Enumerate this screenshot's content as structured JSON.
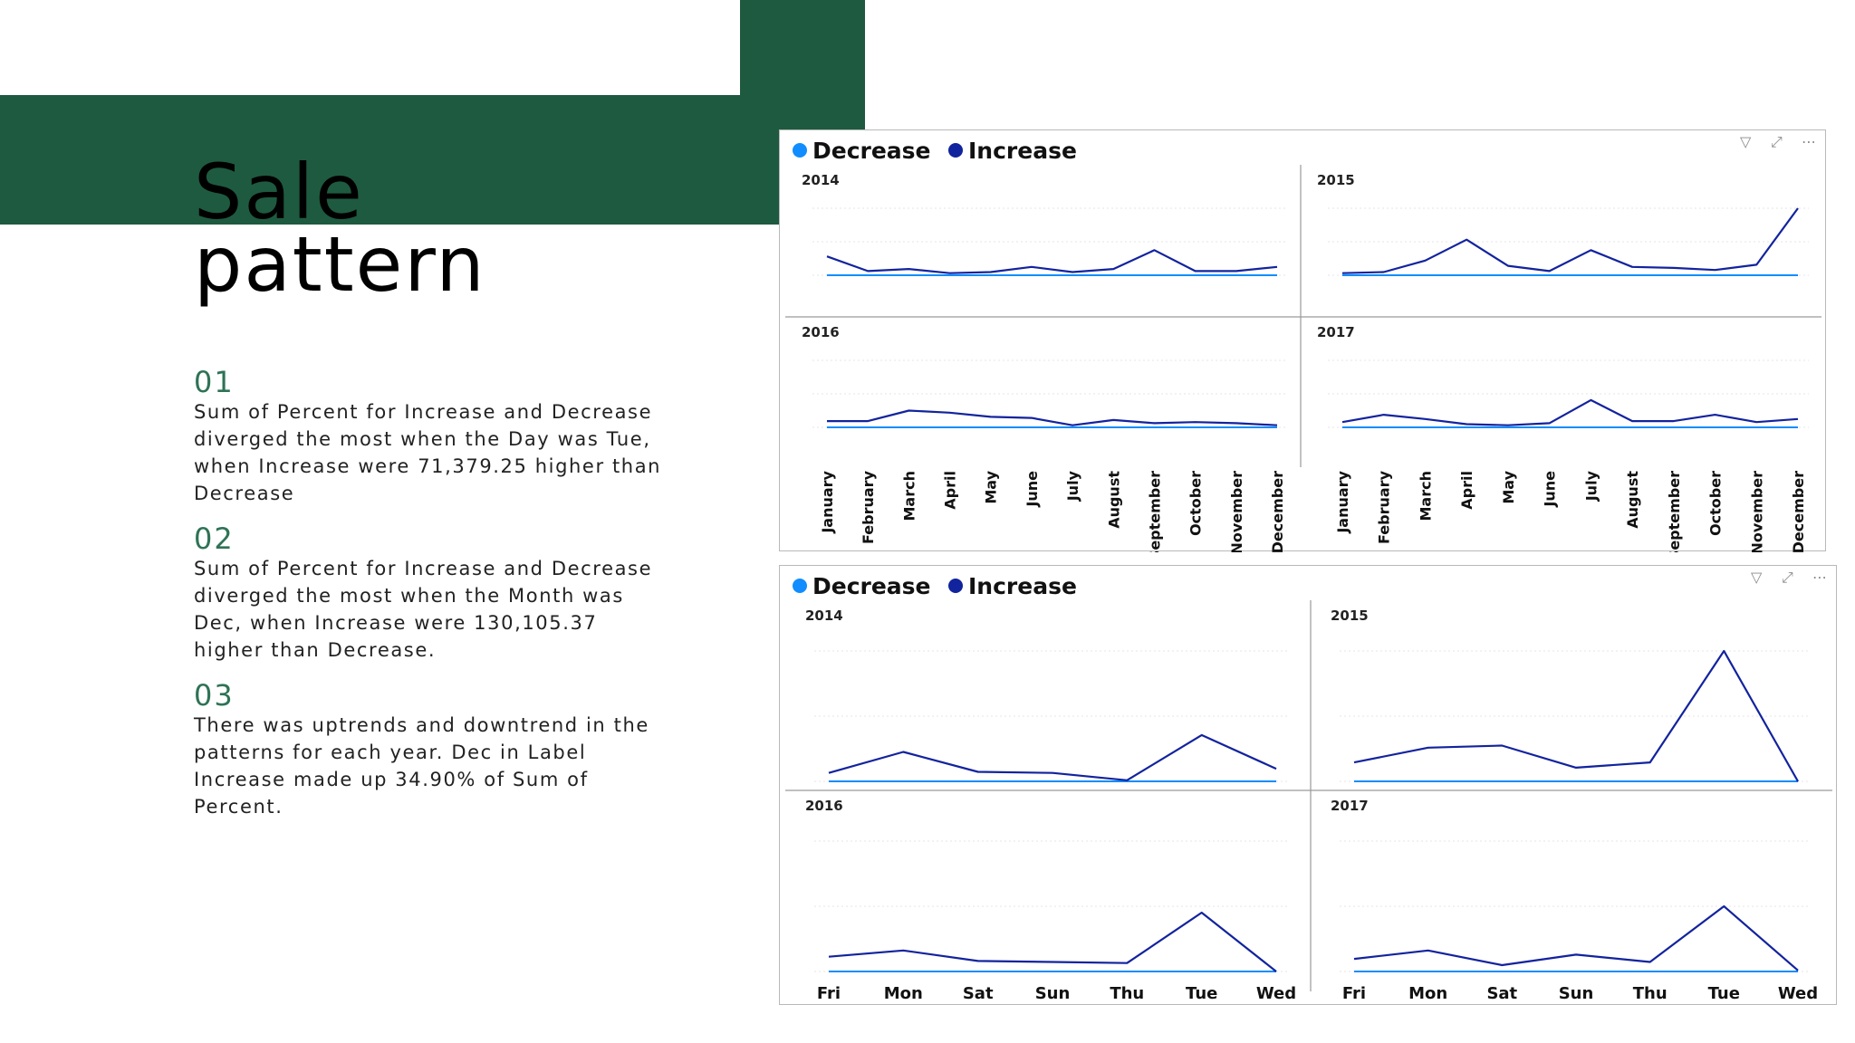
{
  "slide": {
    "title_line1": "Sale",
    "title_line2": "pattern",
    "points": [
      {
        "num": "01",
        "text": " Sum of Percent for Increase and Decrease diverged the most when the Day was Tue, when Increase were 71,379.25 higher than Decrease"
      },
      {
        "num": "02",
        "text": " Sum of Percent for Increase and Decrease diverged the most when the Month was Dec, when Increase were 130,105.37 higher than Decrease."
      },
      {
        "num": "03",
        "text": "There was uptrends and downtrend in the patterns for each year. Dec in Label Increase made up 34.90% of Sum of Percent."
      }
    ]
  },
  "colors": {
    "green": "#1e5a3f",
    "accent_number": "#2e7355",
    "decrease": "#118DFF",
    "increase": "#12239E"
  },
  "icons": [
    "filter-icon",
    "focus-mode-icon",
    "more-options-icon"
  ],
  "chart_data": [
    {
      "type": "line",
      "legend": [
        "Decrease",
        "Increase"
      ],
      "legend_position": "top-left",
      "x": [
        "January",
        "February",
        "March",
        "April",
        "May",
        "June",
        "July",
        "August",
        "September",
        "October",
        "November",
        "December"
      ],
      "panels": [
        {
          "title": "2014",
          "series": [
            {
              "name": "Increase",
              "values": [
                9,
                2,
                3,
                1,
                1.5,
                4,
                1.5,
                3,
                12,
                2,
                2,
                4
              ]
            },
            {
              "name": "Decrease",
              "values": [
                0,
                0,
                0,
                0,
                0,
                0,
                0,
                0,
                0,
                0,
                0,
                0
              ]
            }
          ]
        },
        {
          "title": "2015",
          "series": [
            {
              "name": "Increase",
              "values": [
                1,
                1.5,
                7,
                17,
                4.5,
                2,
                12,
                4,
                3.5,
                2.5,
                5,
                32
              ]
            },
            {
              "name": "Decrease",
              "values": [
                0,
                0,
                0,
                0,
                0,
                0,
                0,
                0,
                0,
                0,
                0,
                0
              ]
            }
          ]
        },
        {
          "title": "2016",
          "series": [
            {
              "name": "Increase",
              "values": [
                3,
                3,
                8,
                7,
                5,
                4.5,
                1,
                3.5,
                2,
                2.5,
                2,
                1
              ]
            },
            {
              "name": "Decrease",
              "values": [
                0,
                0,
                0,
                0,
                0,
                0,
                0,
                0,
                0,
                0,
                0,
                0
              ]
            }
          ]
        },
        {
          "title": "2017",
          "series": [
            {
              "name": "Increase",
              "values": [
                2.5,
                6,
                4,
                1.5,
                1,
                2,
                13,
                3,
                3,
                6,
                2.5,
                4
              ]
            },
            {
              "name": "Decrease",
              "values": [
                0,
                0,
                0,
                0,
                0,
                0,
                0,
                0,
                0,
                0,
                0,
                0
              ]
            }
          ]
        }
      ]
    },
    {
      "type": "line",
      "legend": [
        "Decrease",
        "Increase"
      ],
      "legend_position": "top-left",
      "x": [
        "Fri",
        "Mon",
        "Sat",
        "Sun",
        "Thu",
        "Tue",
        "Wed"
      ],
      "panels": [
        {
          "title": "2014",
          "series": [
            {
              "name": "Increase",
              "values": [
                4,
                14,
                4.5,
                4,
                0.5,
                22,
                6
              ]
            },
            {
              "name": "Decrease",
              "values": [
                0,
                0,
                0,
                0,
                0,
                0,
                0
              ]
            }
          ]
        },
        {
          "title": "2015",
          "series": [
            {
              "name": "Increase",
              "values": [
                9,
                16,
                17,
                6.5,
                9,
                62,
                0
              ]
            },
            {
              "name": "Decrease",
              "values": [
                0,
                0,
                0,
                0,
                0,
                0,
                0
              ]
            }
          ]
        },
        {
          "title": "2016",
          "series": [
            {
              "name": "Increase",
              "values": [
                7,
                10,
                5,
                4.5,
                4,
                28,
                0
              ]
            },
            {
              "name": "Decrease",
              "values": [
                0,
                0,
                0,
                0,
                0,
                0,
                0
              ]
            }
          ]
        },
        {
          "title": "2017",
          "series": [
            {
              "name": "Increase",
              "values": [
                6,
                10,
                3,
                8,
                4.5,
                31,
                0.5
              ]
            },
            {
              "name": "Decrease",
              "values": [
                0,
                0,
                0,
                0,
                0,
                0,
                0
              ]
            }
          ]
        }
      ]
    }
  ]
}
